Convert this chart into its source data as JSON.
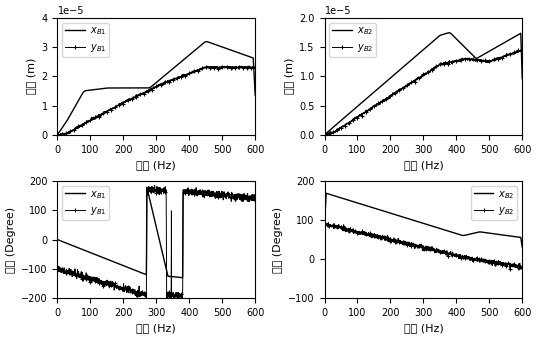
{
  "figsize": [
    5.37,
    3.39
  ],
  "dpi": 100,
  "xlabels": [
    "频率 (Hz)",
    "频率 (Hz)",
    "频率 (Hz)",
    "频率 (Hz)"
  ],
  "ylabels_amp": "幅値 (m)",
  "ylabels_phase": "相位 (Degree)",
  "legend_tl": [
    "$x_{B1}$",
    "$y_{B1}$"
  ],
  "legend_tr": [
    "$x_{B2}$",
    "$y_{B2}$"
  ],
  "legend_bl": [
    "$x_{B1}$",
    "$y_{B1}$"
  ],
  "legend_br": [
    "$x_{B2}$",
    "$y_{B2}$"
  ],
  "amp_ylim_tl": [
    0,
    4e-05
  ],
  "amp_ylim_tr": [
    0,
    2e-05
  ],
  "phase_ylim_bl": [
    -200,
    200
  ],
  "phase_ylim_br": [
    -100,
    200
  ]
}
